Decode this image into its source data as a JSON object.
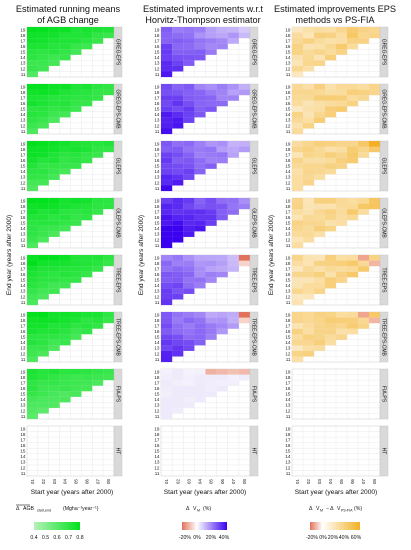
{
  "figure": {
    "column_titles": [
      [
        "Estimated running means",
        "of AGB change"
      ],
      [
        "Estimated improvements w.r.t",
        "Horvitz-Thompson estimator"
      ],
      [
        "Estimated improvements EPS",
        "methods vs PS-FIA"
      ]
    ],
    "ylabel": "End year (years after 2000)",
    "xlabel": "Start year (years after 2000)",
    "y_ticks": [
      "19",
      "18",
      "17",
      "16",
      "15",
      "14",
      "13",
      "12",
      "11"
    ],
    "x_ticks": [
      "01",
      "02",
      "03",
      "04",
      "05",
      "06",
      "07",
      "08"
    ],
    "panels": [
      "GREG-EPS",
      "GREG-EPS-CMB",
      "GLEPS",
      "GLEPS-CMB",
      "TREE-EPS",
      "TREE-EPS-CMB",
      "FIA-PS",
      "HT"
    ],
    "legends": [
      {
        "title_main": "AGB",
        "title_sub": "start,end",
        "title_units": "(Mgha⁻¹year⁻¹)",
        "ticks": [
          "0.4",
          "0.5",
          "0.6",
          "0.7",
          "0.8"
        ]
      },
      {
        "title_main": "V",
        "title_sub": "M",
        "title_units": "(%)",
        "ticks": [
          "-20%",
          "0%",
          "20%",
          "40%"
        ]
      },
      {
        "title_main": "V",
        "title_sub": "M",
        "title_mid": "V",
        "title_sub2": "PS-FIA",
        "title_units": "(%)",
        "ticks": [
          "-20%",
          "0%",
          "20%",
          "40%",
          "60%"
        ]
      }
    ]
  },
  "colors": {
    "green_low": "#b5f2b9",
    "green_high": "#00e11b",
    "purple_low": "#efeafb",
    "purple_high": "#3a00f0",
    "neg_low": "#f6d9cf",
    "neg_high": "#e2715c",
    "orange_low": "#fdf3dd",
    "orange_high": "#f3b024",
    "grid": "#e5e5e5",
    "strip": "#d9d9d9"
  },
  "chart_data": [
    {
      "type": "heatmap",
      "title": "Estimated running means of AGB change",
      "xlabel": "Start year (years after 2000)",
      "ylabel": "End year (years after 2000)",
      "facets": [
        "GREG-EPS",
        "GREG-EPS-CMB",
        "GLEPS",
        "GLEPS-CMB",
        "TREE-EPS",
        "TREE-EPS-CMB",
        "FIA-PS",
        "HT"
      ],
      "x_categories": [
        "01",
        "02",
        "03",
        "04",
        "05",
        "06",
        "07",
        "08"
      ],
      "y_categories": [
        "11",
        "12",
        "13",
        "14",
        "15",
        "16",
        "17",
        "18",
        "19"
      ],
      "color_range": [
        0.4,
        0.8
      ],
      "note_values": "running mean AGB change per facet (Mg ha^-1 year^-1), approx; HT facet empty"
    },
    {
      "type": "heatmap",
      "title": "Estimated improvements w.r.t Horvitz-Thompson estimator",
      "xlabel": "Start year (years after 2000)",
      "facets": [
        "GREG-EPS",
        "GREG-EPS-CMB",
        "GLEPS",
        "GLEPS-CMB",
        "TREE-EPS",
        "TREE-EPS-CMB",
        "FIA-PS",
        "HT"
      ],
      "x_categories": [
        "01",
        "02",
        "03",
        "04",
        "05",
        "06",
        "07",
        "08"
      ],
      "y_categories": [
        "11",
        "12",
        "13",
        "14",
        "15",
        "16",
        "17",
        "18",
        "19"
      ],
      "color_range": [
        -20,
        40
      ]
    },
    {
      "type": "heatmap",
      "title": "Estimated improvements EPS methods vs PS-FIA",
      "xlabel": "Start year (years after 2000)",
      "facets": [
        "GREG-EPS",
        "GREG-EPS-CMB",
        "GLEPS",
        "GLEPS-CMB",
        "TREE-EPS",
        "TREE-EPS-CMB",
        "FIA-PS",
        "HT"
      ],
      "x_categories": [
        "01",
        "02",
        "03",
        "04",
        "05",
        "06",
        "07",
        "08"
      ],
      "y_categories": [
        "11",
        "12",
        "13",
        "14",
        "15",
        "16",
        "17",
        "18",
        "19"
      ],
      "color_range": [
        -20,
        60
      ]
    }
  ]
}
